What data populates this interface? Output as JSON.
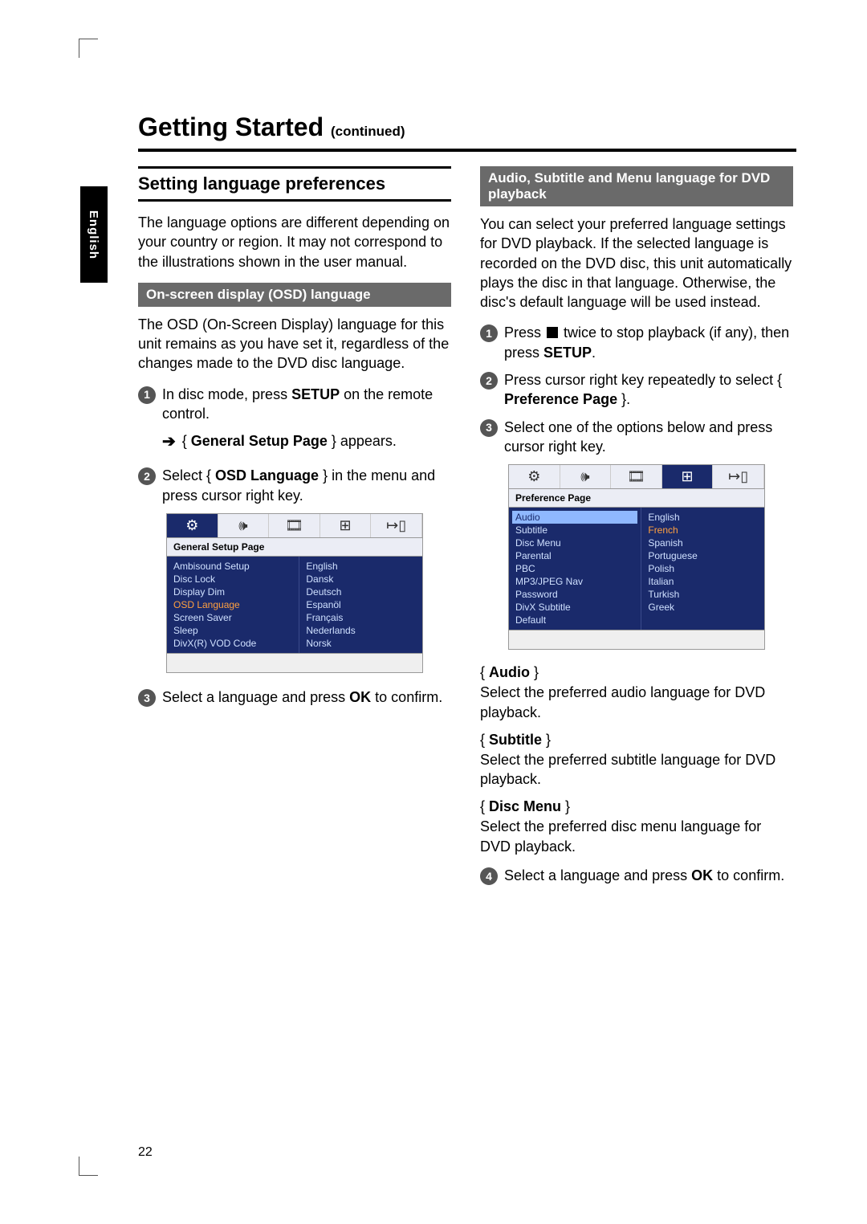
{
  "pageNumber": "22",
  "sideTab": "English",
  "heading": {
    "title": "Getting Started",
    "continued": "(continued)"
  },
  "left": {
    "sectionTitle": "Setting language preferences",
    "intro": "The language options are different depending on your country or region.  It may not correspond to the illustrations shown in the user manual.",
    "sub1": "On-screen display (OSD) language",
    "sub1_desc": "The OSD (On-Screen Display) language for this unit remains as you have set it, regardless of the changes made to the DVD disc language.",
    "step1_a": "In disc mode, press ",
    "step1_setup": "SETUP",
    "step1_b": " on the remote control.",
    "arrow_a": "{ ",
    "arrow_bold": "General Setup Page",
    "arrow_b": " } appears.",
    "step2_a": "Select { ",
    "step2_bold": "OSD Language",
    "step2_b": " } in the menu and press cursor right key.",
    "step3_a": "Select a language and press ",
    "step3_ok": "OK",
    "step3_b": " to confirm.",
    "osd": {
      "title": "General Setup Page",
      "leftItems": [
        "Ambisound Setup",
        "Disc Lock",
        "Display Dim",
        "OSD Language",
        "Screen Saver",
        "Sleep",
        "DivX(R) VOD Code"
      ],
      "selectedLeft": "OSD Language",
      "rightItems": [
        "English",
        "Dansk",
        "Deutsch",
        "Espanöl",
        "Français",
        "Nederlands",
        "Norsk"
      ]
    }
  },
  "right": {
    "sub2": "Audio, Subtitle and Menu language for DVD playback",
    "intro": "You can select your preferred language settings for DVD playback.  If the selected language is recorded on the DVD disc, this unit automatically plays the disc in that language.  Otherwise, the disc's default language will be used instead.",
    "step1_a": "Press ",
    "step1_b": " twice to stop playback (if any), then press ",
    "step1_setup": "SETUP",
    "step1_c": ".",
    "step2_a": "Press cursor right key repeatedly to select { ",
    "step2_bold": "Preference Page",
    "step2_b": " }.",
    "step3": "Select one of the options below and press cursor right key.",
    "osd": {
      "title": "Preference Page",
      "leftItems": [
        "Audio",
        "Subtitle",
        "Disc Menu",
        "Parental",
        "PBC",
        "MP3/JPEG Nav",
        "Password",
        "DivX Subtitle",
        "Default"
      ],
      "highlightedLeft": "Audio",
      "rightItems": [
        "English",
        "French",
        "Spanish",
        "Portuguese",
        "Polish",
        "Italian",
        "Turkish",
        "Greek"
      ]
    },
    "options": [
      {
        "label": "Audio",
        "desc": "Select the preferred audio language for DVD playback."
      },
      {
        "label": "Subtitle",
        "desc": "Select the preferred subtitle language for DVD playback."
      },
      {
        "label": "Disc Menu",
        "desc": "Select the preferred disc menu language for DVD playback."
      }
    ],
    "step4_a": "Select a language and press ",
    "step4_ok": "OK",
    "step4_b": " to confirm."
  },
  "badges": {
    "1": "1",
    "2": "2",
    "3": "3",
    "4": "4"
  },
  "icons": {
    "settings": "⚙",
    "speaker": "🕪",
    "video": "🎞",
    "grid": "⊞",
    "exit": "↦▯"
  }
}
